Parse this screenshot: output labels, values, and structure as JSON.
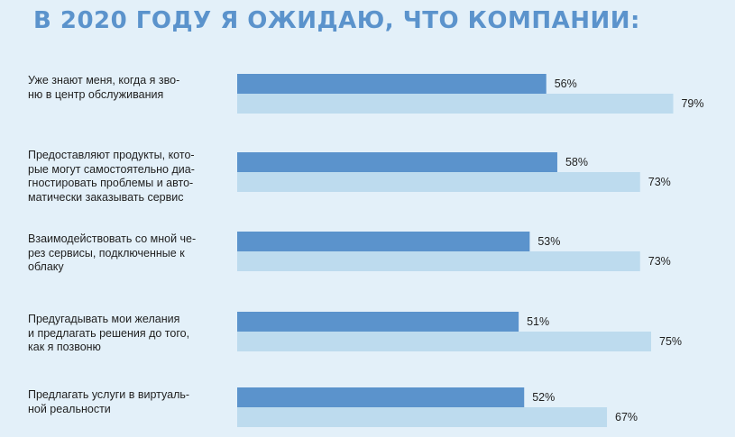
{
  "title": "В 2020 ГОДУ Я ОЖИДАЮ, ЧТО КОМПАНИИ:",
  "colors": {
    "background": "#e3f0f9",
    "title": "#5b93cc",
    "series_dark": "#5b93cc",
    "series_light": "#bddbee"
  },
  "chart_data": {
    "type": "bar",
    "orientation": "horizontal",
    "categories": [
      "Уже знают меня, когда я зво-\nню в центр обслуживания",
      "Предоставляют продукты, кото-\nрые могут самостоятельно диа-\nгностировать проблемы и авто-\nматически заказывать сервис",
      "Взаимодействовать со мной че-\nрез сервисы, подключенные к\nоблаку",
      "Предугадывать мои желания\nи предлагать решения до того,\nкак я позвоню",
      "Предлагать услуги в виртуаль-\nной реальности"
    ],
    "series": [
      {
        "values": [
          56,
          58,
          53,
          51,
          52
        ],
        "labels": [
          "56%",
          "58%",
          "53%",
          "51%",
          "52%"
        ],
        "color": "#5b93cc"
      },
      {
        "values": [
          79,
          73,
          73,
          75,
          67
        ],
        "labels": [
          "79%",
          "73%",
          "73%",
          "75%",
          "67%"
        ],
        "color": "#bddbee"
      }
    ],
    "xlim": [
      0,
      100
    ],
    "grid": false,
    "legend": "none"
  }
}
